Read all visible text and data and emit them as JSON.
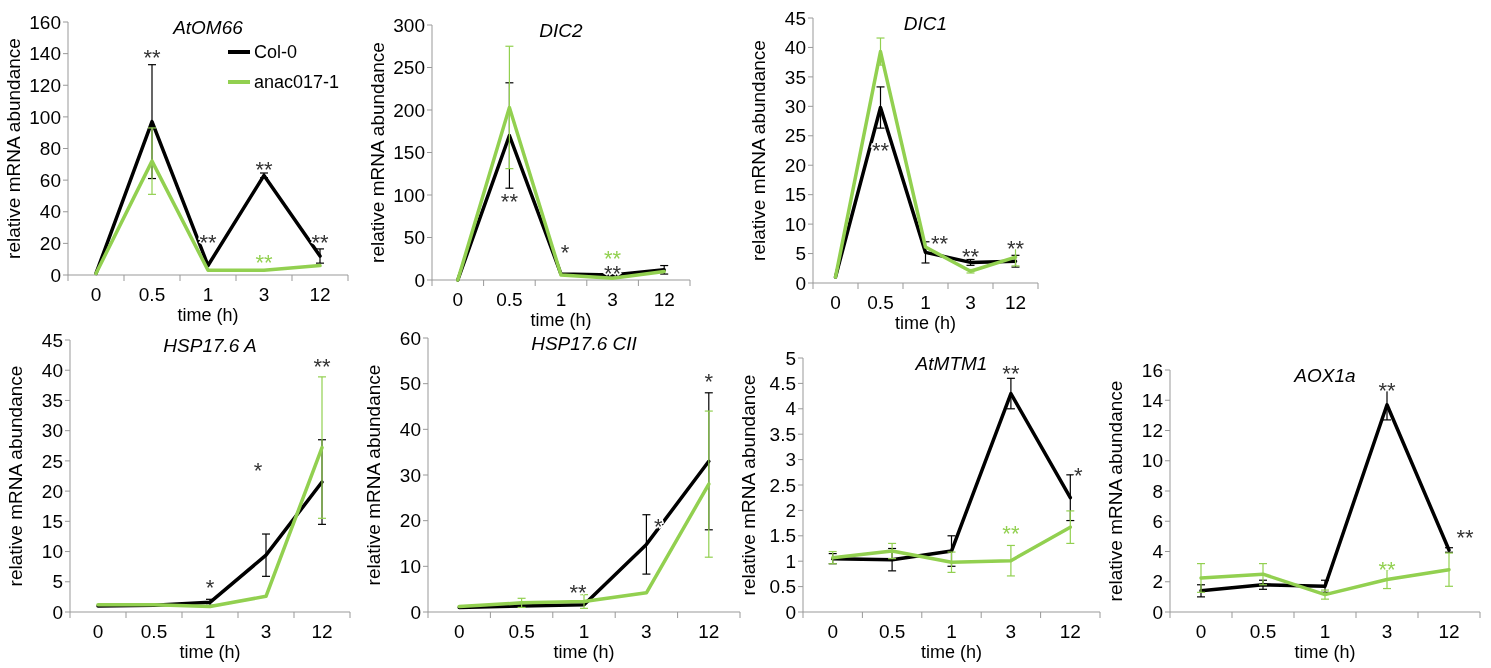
{
  "chart_data": [
    {
      "type": "line",
      "title": "AtOM66",
      "xlabel": "time (h)",
      "ylabel": "relative mRNA abundance",
      "categories": [
        "0",
        "0.5",
        "1",
        "3",
        "12"
      ],
      "ylim": [
        0,
        160
      ],
      "yticks": [
        0,
        20,
        40,
        60,
        80,
        100,
        120,
        140,
        160
      ],
      "legend": "top right",
      "series": [
        {
          "name": "Col-0",
          "color": "#000000",
          "values": [
            1,
            97,
            6,
            63,
            12
          ],
          "errors": [
            null,
            36,
            null,
            1.5,
            4.5
          ]
        },
        {
          "name": "anac017-1",
          "color": "#92d050",
          "values": [
            1,
            72,
            3,
            3,
            6
          ],
          "errors": [
            null,
            21,
            null,
            null,
            null
          ]
        }
      ],
      "annotations": [
        "**",
        "**",
        "**",
        "**",
        "**"
      ]
    },
    {
      "type": "line",
      "title": "DIC2",
      "xlabel": "time (h)",
      "ylabel": "relative mRNA abundance",
      "categories": [
        "0",
        "0.5",
        "1",
        "3",
        "12"
      ],
      "ylim": [
        0,
        300
      ],
      "yticks": [
        0,
        50,
        100,
        150,
        200,
        250,
        300
      ],
      "series": [
        {
          "color": "#000000",
          "values": [
            0,
            170,
            7,
            6,
            12
          ],
          "errors": [
            null,
            62,
            null,
            null,
            5
          ]
        },
        {
          "color": "#92d050",
          "values": [
            0,
            203,
            6,
            2,
            10
          ],
          "errors": [
            null,
            72,
            null,
            null,
            null
          ]
        }
      ],
      "annotations": [
        "**",
        "*",
        "**",
        "**"
      ]
    },
    {
      "type": "line",
      "title": "DIC1",
      "xlabel": "time (h)",
      "ylabel": "relative mRNA abundance",
      "categories": [
        "0",
        "0.5",
        "1",
        "3",
        "12"
      ],
      "ylim": [
        0,
        45
      ],
      "yticks": [
        0,
        5,
        10,
        15,
        20,
        25,
        30,
        35,
        40,
        45
      ],
      "series": [
        {
          "color": "#000000",
          "values": [
            1,
            29.8,
            5.2,
            3.5,
            3.7
          ],
          "errors": [
            null,
            3.5,
            1.8,
            0.5,
            1
          ]
        },
        {
          "color": "#92d050",
          "values": [
            1,
            39.3,
            6.1,
            2,
            4.4
          ],
          "errors": [
            null,
            2.3,
            null,
            0.3,
            1.5
          ]
        }
      ],
      "annotations": [
        "**",
        "**",
        "**",
        "**"
      ]
    },
    {
      "type": "line",
      "title": "HSP17.6 A",
      "xlabel": "time (h)",
      "ylabel": "relative mRNA abundance",
      "categories": [
        "0",
        "0.5",
        "1",
        "3",
        "12"
      ],
      "ylim": [
        0,
        45
      ],
      "yticks": [
        0,
        5,
        10,
        15,
        20,
        25,
        30,
        35,
        40,
        45
      ],
      "series": [
        {
          "color": "#000000",
          "values": [
            1,
            1.1,
            1.6,
            9.4,
            21.5
          ],
          "errors": [
            null,
            null,
            0.5,
            3.5,
            7
          ]
        },
        {
          "color": "#92d050",
          "values": [
            1.2,
            1.2,
            0.9,
            2.6,
            27.2
          ],
          "errors": [
            null,
            null,
            null,
            null,
            11.7
          ]
        }
      ],
      "annotations": [
        "*",
        "*",
        "**"
      ]
    },
    {
      "type": "line",
      "title": "HSP17.6 CII",
      "xlabel": "time (h)",
      "ylabel": "relative mRNA abundance",
      "categories": [
        "0",
        "0.5",
        "1",
        "3",
        "12"
      ],
      "ylim": [
        0,
        60
      ],
      "yticks": [
        0,
        10,
        20,
        30,
        40,
        50,
        60
      ],
      "series": [
        {
          "color": "#000000",
          "values": [
            1,
            1.3,
            1.6,
            14.8,
            33
          ],
          "errors": [
            null,
            null,
            null,
            6.5,
            15
          ]
        },
        {
          "color": "#92d050",
          "values": [
            1.2,
            2,
            2.3,
            4.2,
            28
          ],
          "errors": [
            null,
            1,
            1.5,
            null,
            16
          ]
        }
      ],
      "annotations": [
        "**",
        "*",
        "*"
      ]
    },
    {
      "type": "line",
      "title": "AtMTM1",
      "xlabel": "time (h)",
      "ylabel": "relative mRNA abundance",
      "categories": [
        "0",
        "0.5",
        "1",
        "3",
        "12"
      ],
      "ylim": [
        0,
        5
      ],
      "yticks": [
        0,
        0.5,
        1,
        1.5,
        2,
        2.5,
        3,
        3.5,
        4,
        4.5,
        5
      ],
      "series": [
        {
          "color": "#000000",
          "values": [
            1.05,
            1.03,
            1.2,
            4.3,
            2.25
          ],
          "errors": [
            0.1,
            0.22,
            0.3,
            0.3,
            0.45
          ]
        },
        {
          "color": "#92d050",
          "values": [
            1.07,
            1.2,
            0.98,
            1.01,
            1.67
          ],
          "errors": [
            0.12,
            0.15,
            0.2,
            0.3,
            0.32
          ]
        }
      ],
      "annotations": [
        "**",
        "*",
        "**"
      ]
    },
    {
      "type": "line",
      "title": "AOX1a",
      "xlabel": "time (h)",
      "ylabel": "relative mRNA abundance",
      "categories": [
        "0",
        "0.5",
        "1",
        "3",
        "12"
      ],
      "ylim": [
        0,
        16
      ],
      "yticks": [
        0,
        2,
        4,
        6,
        8,
        10,
        12,
        14,
        16
      ],
      "series": [
        {
          "color": "#000000",
          "values": [
            1.4,
            1.8,
            1.7,
            13.7,
            4.1
          ],
          "errors": [
            0.4,
            0.3,
            0.4,
            1,
            0.15
          ]
        },
        {
          "color": "#92d050",
          "values": [
            2.25,
            2.5,
            1.15,
            2.15,
            2.8
          ],
          "errors": [
            0.95,
            0.7,
            0.3,
            0.6,
            1.1
          ]
        }
      ],
      "annotations": [
        "**",
        "**",
        "**"
      ]
    }
  ]
}
